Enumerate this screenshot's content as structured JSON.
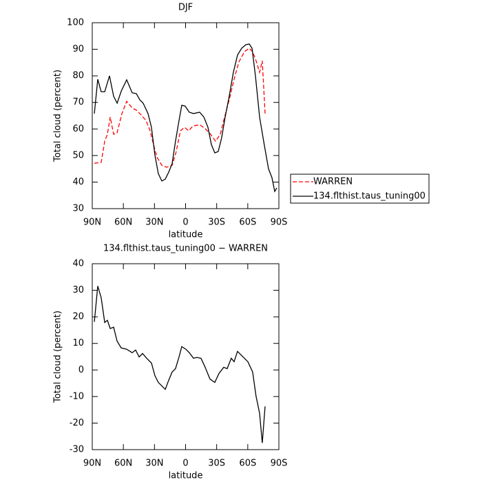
{
  "chart_data": [
    {
      "type": "line",
      "title": "DJF",
      "xlabel": "latitude",
      "ylabel": "Total cloud (percent)",
      "xlim": [
        90,
        -90
      ],
      "xticks": [
        {
          "value": 90,
          "label": "90N"
        },
        {
          "value": 60,
          "label": "60N"
        },
        {
          "value": 30,
          "label": "30N"
        },
        0,
        {
          "value": -30,
          "label": "30S"
        },
        {
          "value": -60,
          "label": "60S"
        },
        {
          "value": -90,
          "label": "90S"
        }
      ],
      "ylim": [
        30,
        100
      ],
      "yticks": [
        30,
        40,
        50,
        60,
        70,
        80,
        90,
        100
      ],
      "legend": "right",
      "series": [
        {
          "name": "WARREN",
          "color": "#ff0000",
          "dashed": true,
          "x": [
            88,
            81.4,
            78,
            75.4,
            72.7,
            69.4,
            66.1,
            61.4,
            56.8,
            51.5,
            47.5,
            42.9,
            38.2,
            34.2,
            30.9,
            27.6,
            22.9,
            18.3,
            13,
            9,
            5,
            1,
            -3,
            -7,
            -13.6,
            -18.9,
            -24.2,
            -28.9,
            -33.5,
            -36.8,
            -42.1,
            -46.8,
            -51.4,
            -56.8,
            -61.4,
            -64.7,
            -68,
            -71.4,
            -74,
            -76.7
          ],
          "values": [
            47.1,
            47.4,
            55.4,
            58,
            64.5,
            58,
            58.5,
            65.8,
            70.4,
            67.9,
            67.1,
            65.3,
            63.2,
            59.3,
            54.1,
            49.4,
            46.3,
            45.6,
            46.3,
            51.5,
            59.3,
            60.6,
            59.3,
            61.1,
            61.6,
            60.1,
            58,
            55.4,
            58,
            63.2,
            71,
            78.7,
            85.2,
            89.1,
            90.4,
            89.1,
            85.7,
            81.3,
            85.7,
            65.8
          ]
        },
        {
          "name": "134.flthist.taus_tuning00",
          "color": "#000000",
          "dashed": false,
          "x": [
            88,
            84.7,
            81.4,
            78,
            73.4,
            69.4,
            66,
            62,
            56.8,
            51.5,
            47.5,
            44.2,
            40.9,
            36.2,
            32.9,
            29.6,
            26.3,
            22.9,
            19.6,
            16.3,
            13,
            9.7,
            6.3,
            3.7,
            0.4,
            -3.6,
            -7.6,
            -13.6,
            -17.6,
            -21.6,
            -24.9,
            -28.2,
            -31.5,
            -34.8,
            -38.2,
            -42.1,
            -46.1,
            -50.1,
            -54.1,
            -58.1,
            -61.4,
            -64.1,
            -67.4,
            -71.4,
            -75.3,
            -80,
            -83.3,
            -86,
            -88
          ],
          "values": [
            65.8,
            78.7,
            74,
            74,
            80,
            72.3,
            69.7,
            74.3,
            78.5,
            73.6,
            73.3,
            71,
            69.7,
            65.8,
            60.6,
            50.2,
            43.2,
            40.4,
            41.1,
            43.7,
            46.9,
            55.4,
            63.2,
            68.9,
            68.6,
            66.3,
            65.8,
            66.3,
            64.5,
            60.6,
            54.1,
            51,
            51.5,
            56.7,
            64.5,
            72.3,
            81.3,
            87.8,
            90.4,
            91.7,
            92,
            90.4,
            80,
            64.5,
            55.4,
            45,
            41.7,
            36.5,
            37.8
          ]
        }
      ]
    },
    {
      "type": "line",
      "title": "134.flthist.taus_tuning00 − WARREN",
      "xlabel": "latitude",
      "ylabel": "Total cloud (percent)",
      "xlim": [
        90,
        -90
      ],
      "xticks": [
        {
          "value": 90,
          "label": "90N"
        },
        {
          "value": 60,
          "label": "60N"
        },
        {
          "value": 30,
          "label": "30N"
        },
        0,
        {
          "value": -30,
          "label": "30S"
        },
        {
          "value": -60,
          "label": "60S"
        },
        {
          "value": -90,
          "label": "90S"
        }
      ],
      "ylim": [
        -30,
        40
      ],
      "yticks": [
        -30,
        -20,
        -10,
        0,
        10,
        20,
        30,
        40
      ],
      "series": [
        {
          "color": "#000000",
          "dashed": false,
          "x": [
            88,
            84.7,
            81.4,
            78,
            75.4,
            72.7,
            69.4,
            66.1,
            62.1,
            56.8,
            51.5,
            48.2,
            44.8,
            41.5,
            37.5,
            32.9,
            29.6,
            26.3,
            22.9,
            19.6,
            16.3,
            13,
            9.7,
            6.3,
            3.7,
            -0.3,
            -3.6,
            -7.6,
            -10.9,
            -14.9,
            -18.9,
            -23.5,
            -28.2,
            -32.2,
            -36.8,
            -40.1,
            -44.1,
            -46.8,
            -50.1,
            -53.4,
            -56.8,
            -60.1,
            -64.7,
            -68,
            -71.4,
            -74,
            -76.7
          ],
          "values": [
            18.1,
            31.6,
            27.2,
            17.9,
            18.7,
            15.6,
            16.1,
            10.9,
            8.3,
            7.8,
            6.5,
            7.5,
            4.9,
            6.2,
            4.4,
            2.6,
            -2.1,
            -4.7,
            -6,
            -7.3,
            -3.9,
            -0.8,
            0.5,
            4.9,
            8.8,
            7.8,
            6.5,
            4.4,
            4.7,
            4.4,
            1,
            -3.4,
            -4.7,
            -1.3,
            1,
            0.5,
            4.4,
            3.1,
            7,
            5.7,
            4.4,
            3.1,
            -0.8,
            -9.9,
            -16.3,
            -27.5,
            -13.7
          ]
        }
      ]
    }
  ]
}
